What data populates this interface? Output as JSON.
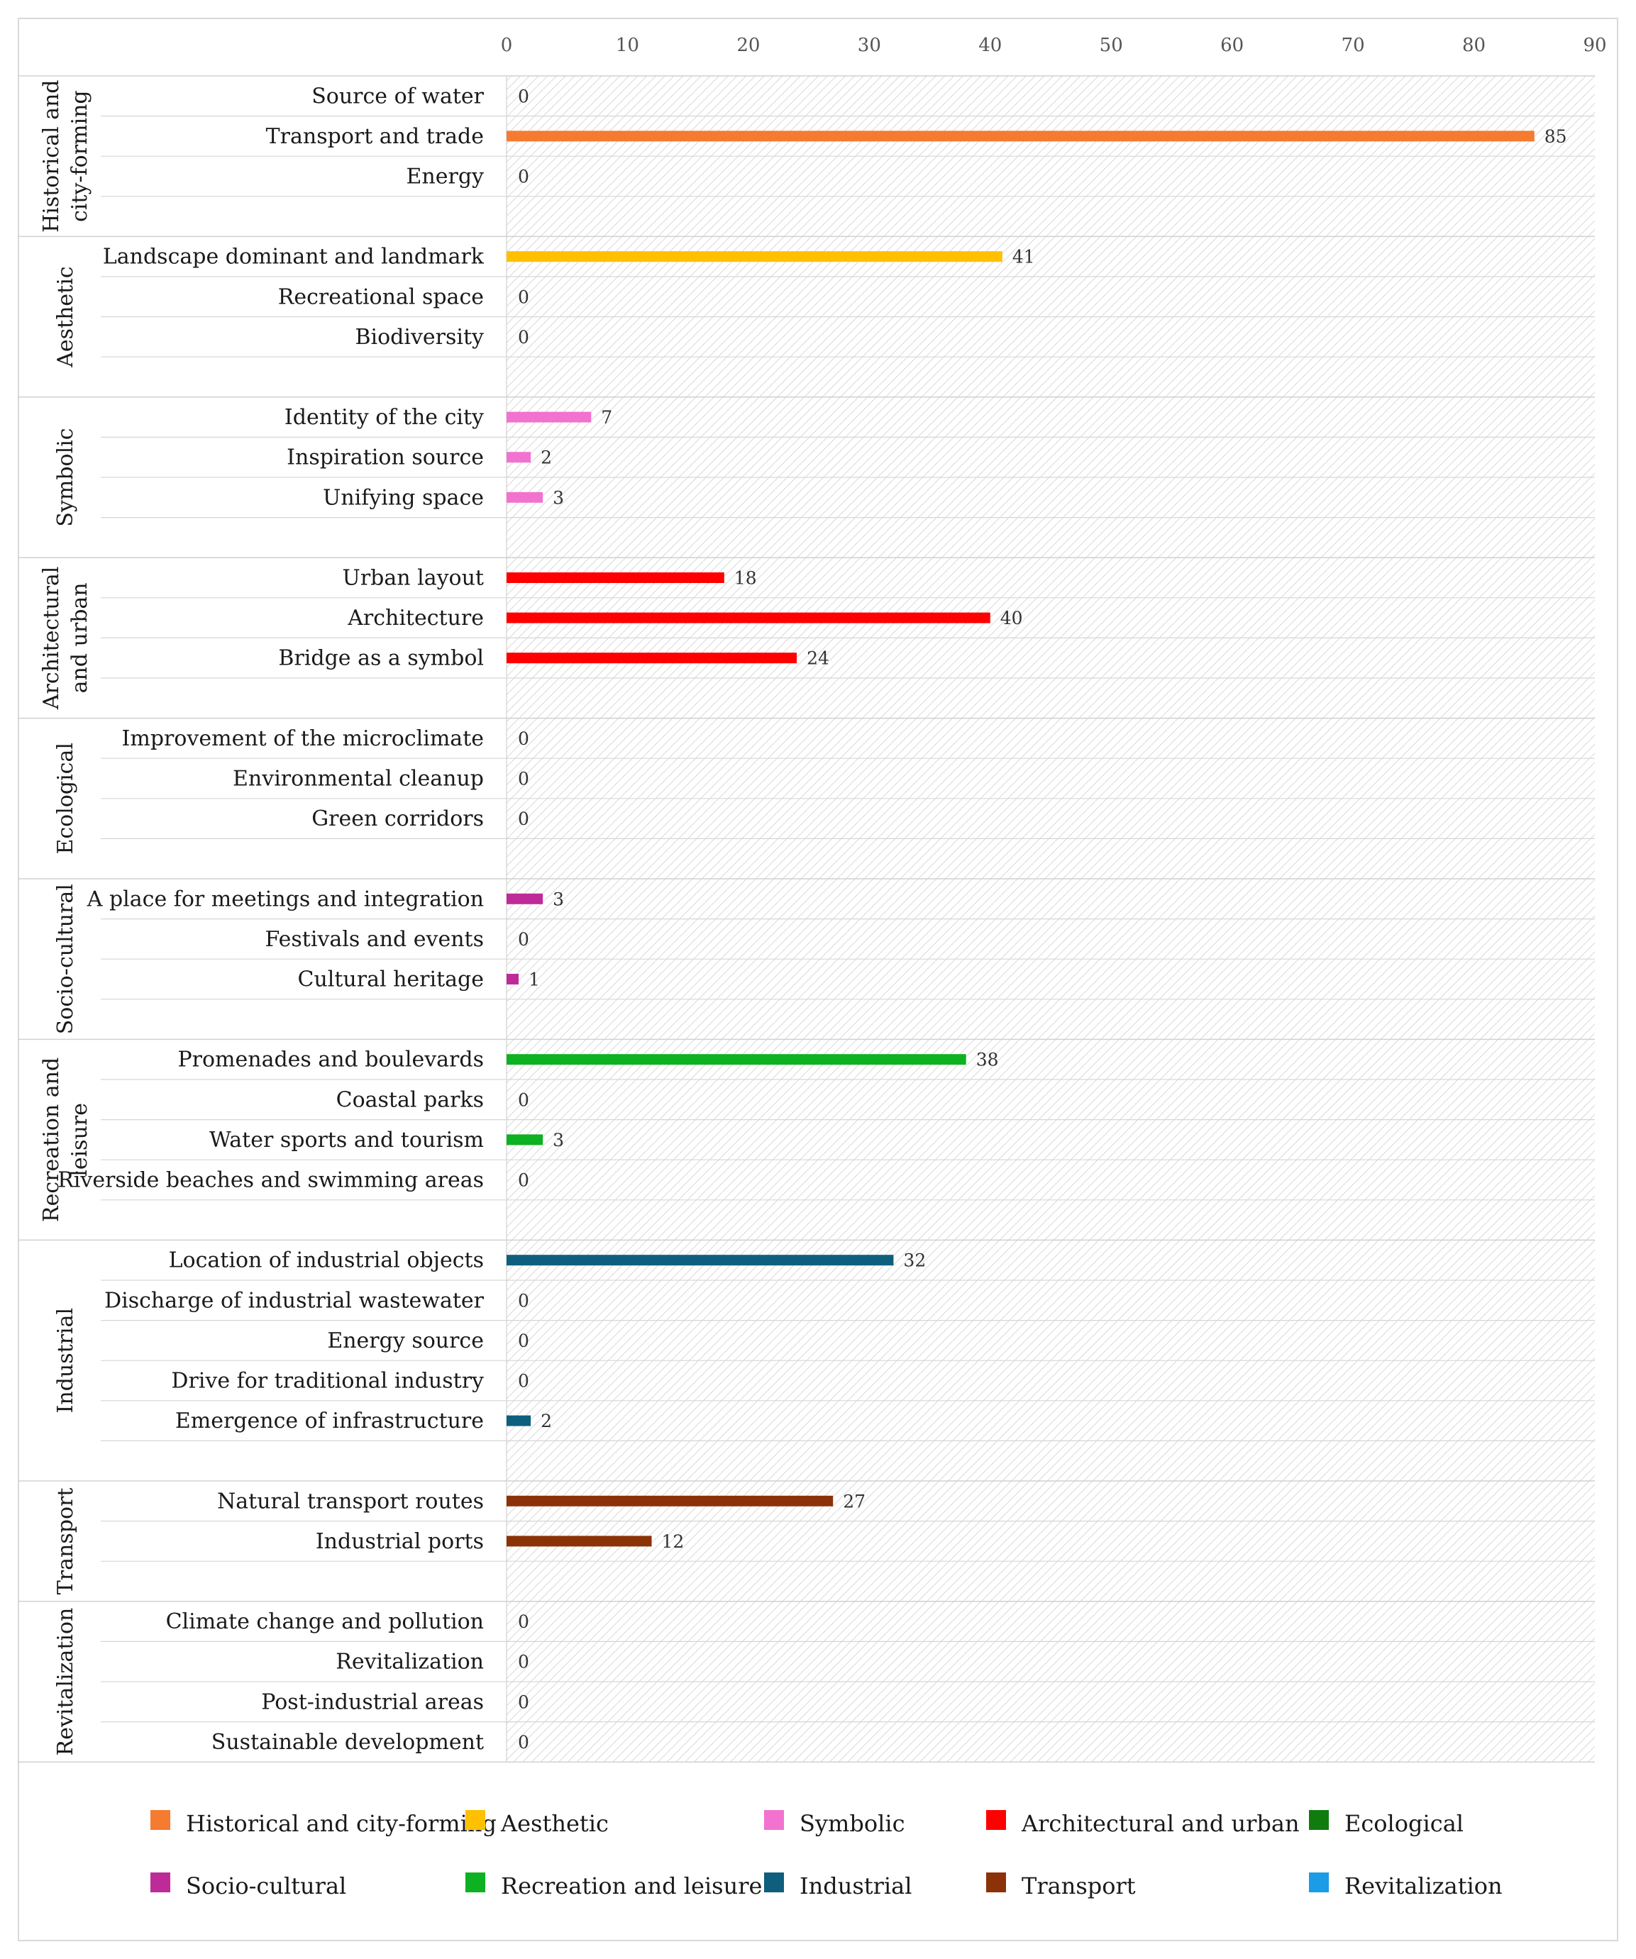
{
  "chart_data": {
    "type": "bar",
    "orientation": "horizontal",
    "title": "",
    "xlim": [
      0,
      90
    ],
    "x_ticks": [
      "0",
      "10",
      "20",
      "30",
      "40",
      "50",
      "60",
      "70",
      "80",
      "90"
    ],
    "grid": false,
    "legend_position": "bottom",
    "groups": [
      {
        "name": "Historical and city-forming",
        "label_lines": [
          "Historical and",
          "city-forming"
        ],
        "color": "#F47B30",
        "items": [
          {
            "label": "Source of water",
            "value": 0
          },
          {
            "label": "Transport and trade",
            "value": 85
          },
          {
            "label": "Energy",
            "value": 0
          }
        ]
      },
      {
        "name": "Aesthetic",
        "label_lines": [
          "Aesthetic"
        ],
        "color": "#FFC000",
        "items": [
          {
            "label": "Landscape dominant and landmark",
            "value": 41
          },
          {
            "label": "Recreational space",
            "value": 0
          },
          {
            "label": "Biodiversity",
            "value": 0
          }
        ]
      },
      {
        "name": "Symbolic",
        "label_lines": [
          "Symbolic"
        ],
        "color": "#F272CF",
        "items": [
          {
            "label": "Identity of the city",
            "value": 7
          },
          {
            "label": "Inspiration source",
            "value": 2
          },
          {
            "label": "Unifying space",
            "value": 3
          }
        ]
      },
      {
        "name": "Architectural and urban",
        "label_lines": [
          "Architectural",
          "and urban"
        ],
        "color": "#FF0000",
        "items": [
          {
            "label": "Urban layout",
            "value": 18
          },
          {
            "label": "Architecture",
            "value": 40
          },
          {
            "label": "Bridge as a symbol",
            "value": 24
          }
        ]
      },
      {
        "name": "Ecological",
        "label_lines": [
          "Ecological"
        ],
        "color": "#107C10",
        "items": [
          {
            "label": "Improvement of the microclimate",
            "value": 0
          },
          {
            "label": "Environmental cleanup",
            "value": 0
          },
          {
            "label": "Green corridors",
            "value": 0
          }
        ]
      },
      {
        "name": "Socio-cultural",
        "label_lines": [
          "Socio-cultural"
        ],
        "color": "#BE2B98",
        "items": [
          {
            "label": "A place for meetings and integration",
            "value": 3
          },
          {
            "label": "Festivals and events",
            "value": 0
          },
          {
            "label": "Cultural heritage",
            "value": 1
          }
        ]
      },
      {
        "name": "Recreation and leisure",
        "label_lines": [
          "Recreation and",
          "leisure"
        ],
        "color": "#0DB121",
        "items": [
          {
            "label": "Promenades and boulevards",
            "value": 38
          },
          {
            "label": "Coastal parks",
            "value": 0
          },
          {
            "label": "Water sports and tourism",
            "value": 3
          },
          {
            "label": "Riverside beaches and swimming areas",
            "value": 0
          }
        ]
      },
      {
        "name": "Industrial",
        "label_lines": [
          "Industrial"
        ],
        "color": "#0E5F7E",
        "items": [
          {
            "label": "Location of industrial objects",
            "value": 32
          },
          {
            "label": "Discharge of industrial wastewater",
            "value": 0
          },
          {
            "label": "Energy source",
            "value": 0
          },
          {
            "label": "Drive for traditional industry",
            "value": 0
          },
          {
            "label": "Emergence of infrastructure",
            "value": 2
          }
        ]
      },
      {
        "name": "Transport",
        "label_lines": [
          "Transport"
        ],
        "color": "#8C3208",
        "items": [
          {
            "label": "Natural transport routes",
            "value": 27
          },
          {
            "label": "Industrial ports",
            "value": 12
          }
        ]
      },
      {
        "name": "Revitalization",
        "label_lines": [
          "Revitalization"
        ],
        "color": "#1B9CE6",
        "items": [
          {
            "label": "Climate change and pollution",
            "value": 0
          },
          {
            "label": "Revitalization",
            "value": 0
          },
          {
            "label": "Post-industrial areas",
            "value": 0
          },
          {
            "label": "Sustainable development",
            "value": 0
          }
        ]
      }
    ],
    "legend": [
      {
        "label": "Historical and city-forming",
        "color": "#F47B30"
      },
      {
        "label": "Aesthetic",
        "color": "#FFC000"
      },
      {
        "label": "Symbolic",
        "color": "#F272CF"
      },
      {
        "label": "Architectural and urban",
        "color": "#FF0000"
      },
      {
        "label": "Ecological",
        "color": "#107C10"
      },
      {
        "label": "Socio-cultural",
        "color": "#BE2B98"
      },
      {
        "label": "Recreation and leisure",
        "color": "#0DB121"
      },
      {
        "label": "Industrial",
        "color": "#0E5F7E"
      },
      {
        "label": "Transport",
        "color": "#8C3208"
      },
      {
        "label": "Revitalization",
        "color": "#1B9CE6"
      }
    ]
  }
}
